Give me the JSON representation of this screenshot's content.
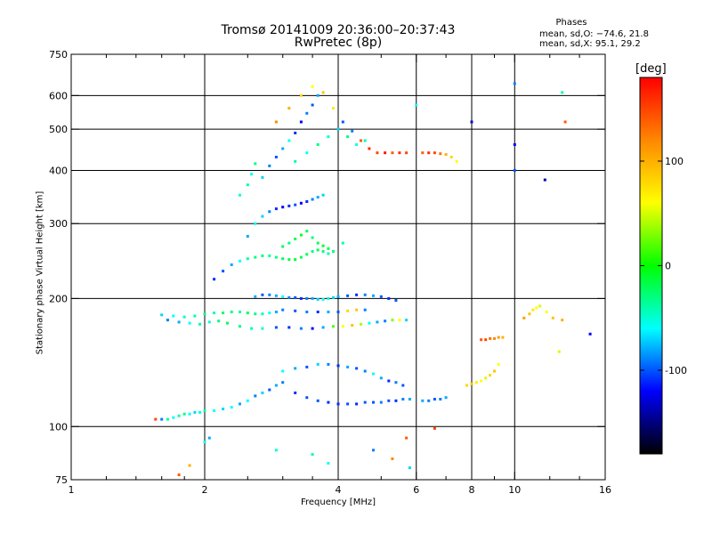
{
  "chart_data": {
    "type": "scatter",
    "title": "Tromsø 20141009 20:36:00–20:37:43",
    "subtitle": "RwPretec (8p)",
    "xlabel": "Frequency [MHz]",
    "ylabel": "Stationary phase Virtual Height [km]",
    "x_scale": "log",
    "y_scale": "log",
    "xlim": [
      1,
      16
    ],
    "ylim": [
      75,
      750
    ],
    "x_ticks": [
      1,
      2,
      4,
      6,
      8,
      10,
      16
    ],
    "x_minor_ticks": [
      1.2,
      1.4,
      1.6,
      1.8,
      2.5,
      3,
      3.5,
      5,
      7,
      9,
      12,
      14
    ],
    "x_grid": [
      2,
      4,
      6,
      8,
      10
    ],
    "y_ticks": [
      75,
      100,
      200,
      300,
      400,
      500,
      600,
      750
    ],
    "y_grid": [
      100,
      200,
      300,
      400,
      500,
      600
    ],
    "grid": true,
    "phases": {
      "title": "Phases",
      "line1": "mean, sd,O: −74.6, 21.8",
      "line2": "mean, sd,X:  95.1, 29.2"
    },
    "colorbar": {
      "label": "[deg]",
      "range": [
        -180,
        180
      ],
      "ticks": [
        100,
        0,
        -100
      ],
      "colors": [
        "#ff0000",
        "#ff8800",
        "#ffff00",
        "#00ff00",
        "#00ffff",
        "#0000ff",
        "#000000"
      ]
    },
    "series": [
      {
        "x": [
          1.55,
          1.6,
          1.65,
          1.7,
          1.75,
          1.8,
          1.85,
          1.9,
          1.95,
          2.0,
          2.1,
          2.2,
          2.3,
          2.4,
          2.5,
          2.6,
          2.7,
          2.8,
          2.9,
          3.0,
          3.2,
          3.4,
          3.6,
          3.8,
          4.0,
          4.2,
          4.4,
          4.6,
          4.8,
          5.0,
          5.2,
          5.4,
          5.6,
          5.8
        ],
        "y": [
          104,
          104,
          104,
          105,
          106,
          107,
          107,
          108,
          108,
          109,
          109,
          110,
          111,
          113,
          115,
          118,
          120,
          122,
          125,
          127,
          120,
          117,
          115,
          114,
          113,
          113,
          113,
          114,
          114,
          114,
          115,
          115,
          116,
          116
        ],
        "phase": [
          150,
          -90,
          -40,
          -60,
          -40,
          -30,
          -60,
          -70,
          -50,
          -40,
          -60,
          -70,
          -60,
          -80,
          -60,
          -90,
          -70,
          -100,
          -80,
          -90,
          -110,
          -100,
          -100,
          -110,
          -110,
          -100,
          -110,
          -100,
          -100,
          -90,
          -100,
          -110,
          -90,
          -80
        ]
      },
      {
        "x": [
          3.0,
          3.2,
          3.4,
          3.6,
          3.8,
          4.0,
          4.2,
          4.4,
          4.6,
          4.8,
          5.0,
          5.2,
          5.4,
          5.6
        ],
        "y": [
          135,
          137,
          138,
          140,
          140,
          139,
          138,
          137,
          135,
          133,
          130,
          128,
          127,
          125
        ],
        "phase": [
          -60,
          -80,
          -100,
          -70,
          -90,
          -110,
          -80,
          -100,
          -90,
          -60,
          -80,
          -110,
          -90,
          -100
        ]
      },
      {
        "x": [
          1.65,
          1.75,
          1.85,
          1.95,
          2.05,
          2.15,
          2.25,
          2.4,
          2.55,
          2.7,
          2.9,
          3.1,
          3.3,
          3.5,
          3.7,
          3.9,
          4.1,
          4.3,
          4.5,
          4.7,
          4.9,
          5.1,
          5.3,
          5.5,
          5.7
        ],
        "y": [
          178,
          176,
          175,
          174,
          176,
          177,
          175,
          172,
          170,
          170,
          171,
          171,
          170,
          170,
          171,
          172,
          172,
          173,
          174,
          175,
          176,
          177,
          178,
          178,
          178
        ],
        "phase": [
          -90,
          -80,
          -60,
          -40,
          -50,
          -30,
          -20,
          -30,
          -40,
          -50,
          -100,
          -110,
          -90,
          -120,
          -80,
          20,
          60,
          90,
          40,
          -60,
          -80,
          -90,
          30,
          60,
          -70
        ]
      },
      {
        "x": [
          1.6,
          1.7,
          1.8,
          1.9,
          2.0,
          2.1,
          2.2,
          2.3,
          2.4,
          2.5,
          2.6,
          2.7,
          2.8,
          2.9,
          3.0,
          3.2,
          3.4,
          3.6,
          3.8,
          4.0,
          4.2,
          4.4,
          4.6
        ],
        "y": [
          183,
          182,
          181,
          182,
          184,
          185,
          185,
          186,
          186,
          185,
          184,
          184,
          185,
          186,
          188,
          187,
          186,
          186,
          186,
          186,
          187,
          188,
          188
        ],
        "phase": [
          -70,
          -60,
          -50,
          -40,
          -30,
          -40,
          -20,
          -30,
          -40,
          -20,
          -30,
          -40,
          -60,
          -80,
          -90,
          -100,
          -90,
          -110,
          -80,
          -100,
          80,
          90,
          -90
        ]
      },
      {
        "x": [
          2.6,
          2.7,
          2.8,
          2.9,
          3.0,
          3.1,
          3.2,
          3.3,
          3.4,
          3.5,
          3.6,
          3.7,
          3.8,
          3.9,
          4.0,
          4.2,
          4.4,
          4.6,
          4.8,
          5.0,
          5.2,
          5.4
        ],
        "y": [
          202,
          204,
          204,
          203,
          202,
          201,
          201,
          200,
          200,
          200,
          199,
          199,
          200,
          201,
          202,
          203,
          204,
          204,
          203,
          202,
          200,
          198
        ],
        "phase": [
          -80,
          -100,
          -90,
          -80,
          -60,
          -90,
          -100,
          -110,
          -90,
          -80,
          -70,
          -60,
          -50,
          -70,
          -80,
          -100,
          -110,
          -90,
          -80,
          -100,
          -110,
          -100
        ]
      },
      {
        "x": [
          2.1,
          2.2,
          2.3,
          2.4,
          2.5,
          2.6,
          2.7,
          2.8,
          2.9,
          3.0,
          3.1,
          3.2,
          3.3,
          3.4,
          3.5,
          3.6,
          3.7,
          3.8
        ],
        "y": [
          222,
          232,
          240,
          245,
          248,
          250,
          252,
          252,
          250,
          248,
          247,
          247,
          250,
          254,
          258,
          260,
          258,
          255
        ],
        "phase": [
          -110,
          -100,
          -80,
          -60,
          -40,
          -30,
          -30,
          -40,
          -30,
          -20,
          -20,
          -10,
          -20,
          -20,
          -30,
          -20,
          -30,
          -40
        ]
      },
      {
        "x": [
          3.0,
          3.1,
          3.2,
          3.3,
          3.4,
          3.5,
          3.6,
          3.7,
          3.8,
          3.9,
          4.1
        ],
        "y": [
          265,
          270,
          276,
          282,
          288,
          278,
          270,
          266,
          262,
          258,
          270
        ],
        "phase": [
          -20,
          -30,
          -20,
          -10,
          -20,
          -30,
          -20,
          -10,
          -20,
          -30,
          -40
        ]
      },
      {
        "x": [
          2.5,
          2.6,
          2.7,
          2.8,
          2.9,
          3.0,
          3.1,
          3.2,
          3.3,
          3.4,
          3.5,
          3.6,
          3.7
        ],
        "y": [
          280,
          300,
          312,
          320,
          325,
          328,
          330,
          332,
          335,
          338,
          342,
          346,
          350
        ],
        "phase": [
          -80,
          -60,
          -70,
          -90,
          -110,
          -120,
          -110,
          -100,
          -120,
          -110,
          -90,
          -80,
          -70
        ]
      },
      {
        "x": [
          2.4,
          2.5,
          2.55,
          2.6,
          2.7,
          2.8,
          2.9,
          3.0,
          3.1,
          3.2,
          3.3,
          3.4,
          3.5,
          3.6
        ],
        "y": [
          350,
          370,
          392,
          415,
          385,
          410,
          430,
          450,
          470,
          490,
          520,
          545,
          570,
          600
        ],
        "phase": [
          -50,
          -40,
          -60,
          -30,
          -70,
          -90,
          -100,
          -80,
          -60,
          -110,
          -120,
          -90,
          -100,
          -80
        ]
      },
      {
        "x": [
          2.9,
          3.1,
          3.3,
          3.5,
          3.7,
          3.9,
          4.1,
          4.3,
          4.5,
          4.7,
          4.9,
          5.1,
          5.3,
          5.5,
          5.7
        ],
        "y": [
          520,
          560,
          600,
          630,
          610,
          560,
          520,
          495,
          470,
          450,
          440,
          440,
          440,
          440,
          440
        ],
        "phase": [
          120,
          100,
          80,
          60,
          90,
          70,
          -100,
          -90,
          140,
          160,
          150,
          170,
          140,
          160,
          150
        ]
      },
      {
        "x": [
          3.2,
          3.4,
          3.6,
          3.8,
          4.0,
          4.2,
          4.4,
          4.6
        ],
        "y": [
          420,
          440,
          460,
          480,
          500,
          480,
          460,
          470
        ],
        "phase": [
          -40,
          -60,
          -30,
          -50,
          -70,
          -30,
          -60,
          -40
        ]
      },
      {
        "x": [
          6.2,
          6.4,
          6.6,
          6.8,
          7.0,
          7.2,
          7.4
        ],
        "y": [
          440,
          440,
          440,
          438,
          436,
          430,
          420
        ],
        "phase": [
          140,
          160,
          150,
          130,
          100,
          80,
          60
        ]
      },
      {
        "x": [
          6.2,
          6.4,
          6.6,
          6.8,
          7.0
        ],
        "y": [
          115,
          115,
          116,
          116,
          117
        ],
        "phase": [
          -80,
          -90,
          -100,
          -90,
          -80
        ]
      },
      {
        "x": [
          7.8,
          8.0,
          8.2,
          8.4,
          8.6,
          8.8,
          9.0,
          9.2
        ],
        "y": [
          125,
          126,
          127,
          128,
          130,
          132,
          135,
          140
        ],
        "phase": [
          80,
          90,
          70,
          60,
          50,
          80,
          90,
          60
        ]
      },
      {
        "x": [
          8.4,
          8.6,
          8.8,
          9.0,
          9.2,
          9.4
        ],
        "y": [
          160,
          160,
          161,
          161,
          162,
          162
        ],
        "phase": [
          140,
          150,
          130,
          120,
          110,
          100
        ]
      },
      {
        "x": [
          10.5,
          10.8,
          11.0,
          11.2,
          11.4,
          11.8,
          12.2,
          12.8
        ],
        "y": [
          180,
          184,
          188,
          190,
          192,
          186,
          180,
          178
        ],
        "phase": [
          110,
          90,
          70,
          60,
          50,
          60,
          90,
          100
        ]
      },
      {
        "x": [
          10.0,
          10.0,
          10.0,
          6.0,
          8.0,
          12.8,
          13.0,
          14.8,
          11.7,
          12.6
        ],
        "y": [
          640,
          460,
          400,
          570,
          520,
          610,
          520,
          165,
          380,
          150
        ],
        "phase": [
          -90,
          -120,
          -100,
          -60,
          -130,
          -40,
          140,
          -120,
          -140,
          50
        ]
      },
      {
        "x": [
          1.75,
          1.85,
          2.0,
          2.05,
          2.9,
          3.5,
          3.8,
          4.8,
          5.3,
          5.7,
          5.8,
          6.6
        ],
        "y": [
          77,
          81,
          92,
          94,
          88,
          86,
          82,
          88,
          84,
          94,
          80,
          99
        ],
        "phase": [
          140,
          100,
          -60,
          -80,
          -50,
          -40,
          -60,
          -90,
          120,
          140,
          -70,
          150
        ]
      }
    ]
  }
}
